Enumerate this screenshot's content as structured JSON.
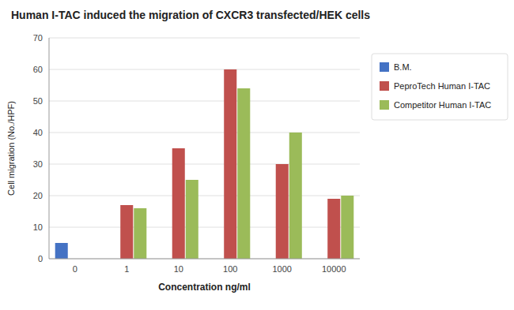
{
  "chart_data": {
    "type": "bar",
    "title": "Human I-TAC induced the migration of CXCR3 transfected/HEK cells",
    "x_label": "Concentration ng/ml",
    "y_label": "Cell migration (No./HPF)",
    "categories": [
      "0",
      "1",
      "10",
      "100",
      "1000",
      "10000"
    ],
    "series": [
      {
        "name": "B.M.",
        "color": "#4472C4",
        "values": [
          5,
          0,
          0,
          0,
          0,
          0
        ]
      },
      {
        "name": "PeproTech Human I-TAC",
        "color": "#C0504D",
        "values": [
          0,
          17,
          35,
          60,
          30,
          19
        ]
      },
      {
        "name": "Competitor Human I-TAC",
        "color": "#9BBB59",
        "values": [
          0,
          16,
          25,
          54,
          40,
          20
        ]
      }
    ],
    "ylim": [
      0,
      70
    ],
    "yticks": [
      0,
      10,
      20,
      30,
      40,
      50,
      60,
      70
    ],
    "grid": true,
    "legend": "right"
  }
}
